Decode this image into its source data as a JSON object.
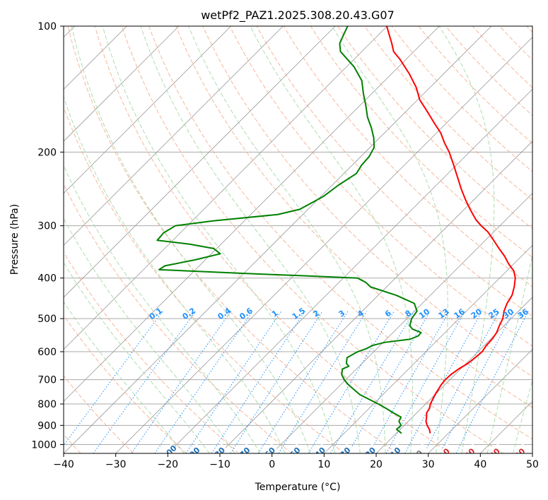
{
  "chart_data": {
    "type": "line",
    "title": "wetPf2_PAZ1.2025.308.20.43.G07",
    "xlabel": "Temperature (°C)",
    "ylabel": "Pressure (hPa)",
    "xlim": [
      -40,
      50
    ],
    "ylim": [
      1050,
      100
    ],
    "y_scale": "log",
    "grid": true,
    "skew": true,
    "x_ticks": [
      -40,
      -30,
      -20,
      -10,
      0,
      10,
      20,
      30,
      40,
      50
    ],
    "y_ticks": [
      100,
      200,
      300,
      400,
      500,
      600,
      700,
      800,
      900,
      1000
    ],
    "series": [
      {
        "name": "",
        "color": "#ff0000",
        "pressure": [
          940,
          920,
          900,
          880,
          860,
          840,
          820,
          800,
          760,
          720,
          700,
          680,
          660,
          640,
          620,
          600,
          580,
          560,
          540,
          520,
          500,
          480,
          460,
          440,
          420,
          400,
          385,
          370,
          355,
          340,
          325,
          310,
          300,
          290,
          275,
          260,
          245,
          230,
          215,
          200,
          190,
          180,
          170,
          160,
          150,
          140,
          130,
          120,
          115,
          110,
          105,
          100
        ],
        "temperature": [
          26.5,
          25.6,
          24.4,
          23.4,
          22.7,
          21.9,
          21.6,
          20.9,
          20.0,
          19.3,
          19.1,
          19.2,
          19.6,
          20.3,
          20.6,
          20.8,
          20.4,
          20.3,
          19.9,
          19.1,
          18.4,
          17.2,
          16.3,
          15.7,
          14.5,
          13.0,
          11.4,
          9.0,
          6.8,
          4.2,
          1.6,
          -1.2,
          -3.6,
          -5.8,
          -8.7,
          -11.6,
          -14.5,
          -17.4,
          -20.5,
          -23.9,
          -26.6,
          -29.2,
          -32.5,
          -35.9,
          -39.6,
          -42.7,
          -46.6,
          -51.2,
          -53.9,
          -55.8,
          -57.9,
          -60.1
        ]
      },
      {
        "name": "",
        "color": "#008000",
        "pressure": [
          940,
          920,
          900,
          880,
          860,
          840,
          820,
          800,
          760,
          720,
          700,
          680,
          660,
          650,
          640,
          620,
          600,
          590,
          580,
          570,
          560,
          550,
          540,
          530,
          520,
          510,
          500,
          480,
          460,
          440,
          420,
          410,
          400,
          395,
          390,
          382,
          374,
          362,
          350,
          340,
          332,
          325,
          318,
          312,
          300,
          292,
          282,
          274,
          265,
          255,
          240,
          225,
          215,
          205,
          195,
          185,
          175,
          165,
          155,
          145,
          135,
          125,
          115,
          110,
          105,
          100
        ],
        "temperature": [
          21.0,
          19.3,
          19.4,
          18.2,
          17.8,
          15.5,
          13.3,
          10.9,
          5.6,
          1.5,
          -0.3,
          -1.8,
          -2.7,
          -2.0,
          -3.0,
          -4.0,
          -3.1,
          -2.0,
          -1.5,
          0.3,
          4.6,
          5.5,
          5.4,
          3.1,
          1.9,
          1.4,
          0.9,
          0.5,
          -1.5,
          -6.5,
          -13.1,
          -14.8,
          -17.3,
          -28.0,
          -40.0,
          -57.0,
          -56.6,
          -52.0,
          -48.3,
          -50.6,
          -56.0,
          -63.0,
          -63.1,
          -63.2,
          -62.3,
          -56.0,
          -44.8,
          -41.6,
          -40.6,
          -39.5,
          -38.8,
          -37.6,
          -38.2,
          -38.4,
          -39.2,
          -41.1,
          -43.5,
          -46.3,
          -48.8,
          -51.6,
          -54.4,
          -58.6,
          -64.1,
          -65.8,
          -66.7,
          -67.6
        ]
      }
    ],
    "dry_adiabat_labels": [
      "-100",
      "-90",
      "-80",
      "-70",
      "-60",
      "-50",
      "-40",
      "-30",
      "-20",
      "-10",
      "0",
      "10",
      "20",
      "30",
      "40"
    ],
    "dry_adiabat_label_values": [
      -100,
      -90,
      -80,
      -70,
      -60,
      -50,
      -40,
      -30,
      -20,
      -10,
      0,
      10,
      20,
      30,
      40
    ],
    "mixing_ratio_labels": [
      "0.1",
      "0.2",
      "0.4",
      "0.6",
      "1",
      "1.5",
      "2",
      "3",
      "4",
      "6",
      "8",
      "10",
      "13",
      "16",
      "20",
      "25",
      "30",
      "36"
    ],
    "mixing_ratio_values": [
      0.1,
      0.2,
      0.4,
      0.6,
      1,
      1.5,
      2,
      3,
      4,
      6,
      8,
      10,
      13,
      16,
      20,
      25,
      30,
      36
    ],
    "colors": {
      "isobar": "#aaaaaa",
      "isotherm": "#999999",
      "dry_adiabat": "#f4a582",
      "moist_adiabat": "#a6d8a6",
      "mixing_ratio": "#1e90ff",
      "dry_label_cold": "#1f6fb4",
      "dry_label_warm": "#d62728",
      "dry_label_zero": "#777777",
      "mixing_label": "#1e90ff"
    }
  }
}
